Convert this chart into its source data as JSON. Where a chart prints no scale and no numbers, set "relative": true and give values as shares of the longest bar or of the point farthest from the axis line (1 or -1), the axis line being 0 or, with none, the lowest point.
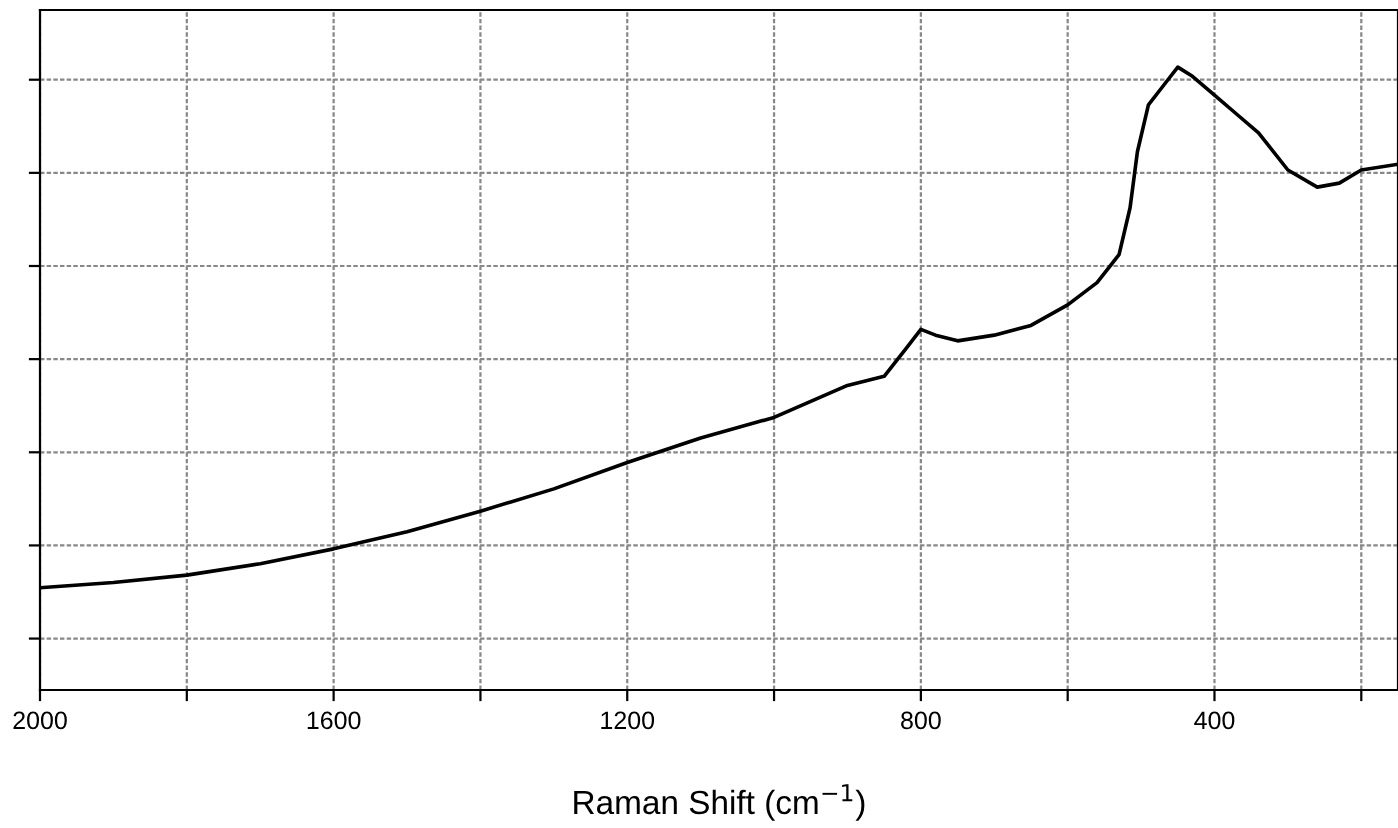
{
  "chart_data": {
    "type": "line",
    "xlabel": "Raman Shift (cm$^{−1}$)",
    "relative": true,
    "grid": true,
    "tick_labels": "x",
    "xlim": [
      2000,
      150
    ],
    "xticks": [
      2000,
      {
        "value": 1800,
        "label": null
      },
      1600,
      {
        "value": 1400,
        "label": null
      },
      1200,
      {
        "value": 1000,
        "label": null
      },
      800,
      {
        "value": 600,
        "label": null
      },
      400,
      {
        "value": 200,
        "label": null
      }
    ],
    "series": [
      {
        "color": "#000000",
        "x": [
          2000,
          1900,
          1800,
          1700,
          1600,
          1500,
          1400,
          1300,
          1200,
          1100,
          1000,
          900,
          850,
          820,
          800,
          780,
          750,
          700,
          650,
          600,
          560,
          530,
          515,
          505,
          490,
          470,
          450,
          430,
          400,
          370,
          340,
          300,
          260,
          230,
          200,
          150
        ],
        "values": [
          0.089,
          0.098,
          0.111,
          0.131,
          0.157,
          0.187,
          0.223,
          0.262,
          0.308,
          0.351,
          0.387,
          0.443,
          0.459,
          0.508,
          0.541,
          0.531,
          0.521,
          0.531,
          0.548,
          0.584,
          0.623,
          0.672,
          0.754,
          0.852,
          0.934,
          0.967,
          1.0,
          0.984,
          0.951,
          0.918,
          0.885,
          0.82,
          0.79,
          0.797,
          0.82,
          0.83
        ]
      }
    ]
  }
}
